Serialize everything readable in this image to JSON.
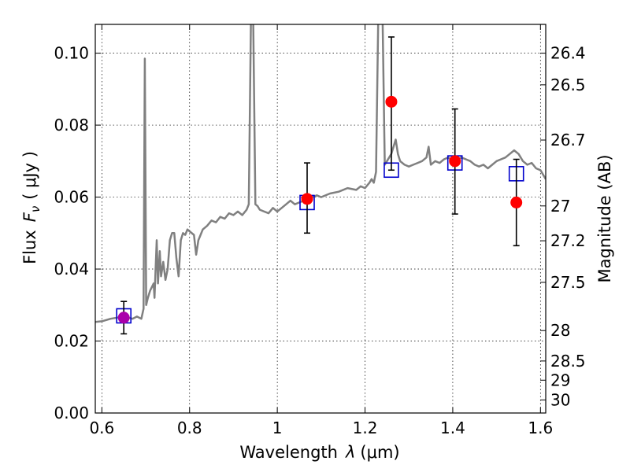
{
  "chart_data": {
    "type": "scatter",
    "xlabel": "Wavelength",
    "xlabel_symbol": "λ",
    "xlabel_unit": "(μm)",
    "ylabel": "Flux",
    "ylabel_symbol": "F",
    "ylabel_symbol_sub": "ν",
    "ylabel_unit": "( μJy )",
    "y2label": "Magnitude (AB)",
    "xlim": [
      0.585,
      1.612
    ],
    "ylim": [
      0.0,
      0.108
    ],
    "grid": true,
    "grid_style": "dotted",
    "x_ticks": [
      {
        "value": 0.6,
        "label": "0.6"
      },
      {
        "value": 0.8,
        "label": "0.8"
      },
      {
        "value": 1.0,
        "label": "1"
      },
      {
        "value": 1.2,
        "label": "1.2"
      },
      {
        "value": 1.4,
        "label": "1.4"
      },
      {
        "value": 1.6,
        "label": "1.6"
      }
    ],
    "y_ticks": [
      {
        "value": 0.0,
        "label": "0.00"
      },
      {
        "value": 0.02,
        "label": "0.02"
      },
      {
        "value": 0.04,
        "label": "0.04"
      },
      {
        "value": 0.06,
        "label": "0.06"
      },
      {
        "value": 0.08,
        "label": "0.08"
      },
      {
        "value": 0.1,
        "label": "0.10"
      }
    ],
    "mag_ticks": [
      {
        "mag": 26.4,
        "label": "26.4"
      },
      {
        "mag": 26.5,
        "label": "26.5"
      },
      {
        "mag": 26.7,
        "label": "26.7"
      },
      {
        "mag": 27.0,
        "label": "27"
      },
      {
        "mag": 27.2,
        "label": "27.2"
      },
      {
        "mag": 27.5,
        "label": "27.5"
      },
      {
        "mag": 28.0,
        "label": "28"
      },
      {
        "mag": 28.5,
        "label": "28.5"
      },
      {
        "mag": 29.0,
        "label": "29"
      },
      {
        "mag": 30.0,
        "label": "30"
      }
    ],
    "mag_zeropoint": 23.9,
    "colors": {
      "spectrum": "#808080",
      "observed": "#ff0000",
      "model": "#0000cc",
      "overlap": "#aa00aa",
      "errorbar": "#000000"
    },
    "series": [
      {
        "kind": "line",
        "points": [
          [
            0.585,
            0.0253
          ],
          [
            0.6,
            0.0255
          ],
          [
            0.62,
            0.0262
          ],
          [
            0.64,
            0.0266
          ],
          [
            0.66,
            0.0265
          ],
          [
            0.67,
            0.0262
          ],
          [
            0.68,
            0.0268
          ],
          [
            0.69,
            0.0262
          ],
          [
            0.695,
            0.029
          ],
          [
            0.698,
            0.0985
          ],
          [
            0.701,
            0.03
          ],
          [
            0.705,
            0.032
          ],
          [
            0.71,
            0.034
          ],
          [
            0.718,
            0.036
          ],
          [
            0.72,
            0.032
          ],
          [
            0.725,
            0.048
          ],
          [
            0.728,
            0.036
          ],
          [
            0.732,
            0.045
          ],
          [
            0.735,
            0.038
          ],
          [
            0.74,
            0.042
          ],
          [
            0.745,
            0.037
          ],
          [
            0.75,
            0.04
          ],
          [
            0.755,
            0.048
          ],
          [
            0.76,
            0.05
          ],
          [
            0.765,
            0.05
          ],
          [
            0.77,
            0.043
          ],
          [
            0.775,
            0.038
          ],
          [
            0.78,
            0.048
          ],
          [
            0.785,
            0.05
          ],
          [
            0.79,
            0.0495
          ],
          [
            0.795,
            0.051
          ],
          [
            0.8,
            0.0505
          ],
          [
            0.81,
            0.0495
          ],
          [
            0.815,
            0.044
          ],
          [
            0.82,
            0.048
          ],
          [
            0.83,
            0.051
          ],
          [
            0.84,
            0.052
          ],
          [
            0.85,
            0.0535
          ],
          [
            0.86,
            0.053
          ],
          [
            0.87,
            0.0545
          ],
          [
            0.88,
            0.054
          ],
          [
            0.89,
            0.0555
          ],
          [
            0.9,
            0.055
          ],
          [
            0.91,
            0.056
          ],
          [
            0.92,
            0.055
          ],
          [
            0.93,
            0.0565
          ],
          [
            0.935,
            0.058
          ],
          [
            0.94,
            0.11
          ],
          [
            0.945,
            0.11
          ],
          [
            0.95,
            0.058
          ],
          [
            0.955,
            0.0575
          ],
          [
            0.96,
            0.0565
          ],
          [
            0.97,
            0.056
          ],
          [
            0.98,
            0.0555
          ],
          [
            0.99,
            0.057
          ],
          [
            1.0,
            0.056
          ],
          [
            1.01,
            0.057
          ],
          [
            1.02,
            0.058
          ],
          [
            1.03,
            0.059
          ],
          [
            1.04,
            0.058
          ],
          [
            1.05,
            0.0585
          ],
          [
            1.06,
            0.059
          ],
          [
            1.07,
            0.0595
          ],
          [
            1.08,
            0.06
          ],
          [
            1.09,
            0.0605
          ],
          [
            1.1,
            0.06
          ],
          [
            1.12,
            0.061
          ],
          [
            1.14,
            0.0615
          ],
          [
            1.16,
            0.0625
          ],
          [
            1.18,
            0.062
          ],
          [
            1.19,
            0.063
          ],
          [
            1.2,
            0.0625
          ],
          [
            1.21,
            0.064
          ],
          [
            1.215,
            0.065
          ],
          [
            1.22,
            0.064
          ],
          [
            1.225,
            0.067
          ],
          [
            1.23,
            0.108
          ],
          [
            1.235,
            0.11
          ],
          [
            1.24,
            0.11
          ],
          [
            1.245,
            0.069
          ],
          [
            1.25,
            0.07
          ],
          [
            1.26,
            0.072
          ],
          [
            1.27,
            0.076
          ],
          [
            1.275,
            0.072
          ],
          [
            1.28,
            0.07
          ],
          [
            1.29,
            0.069
          ],
          [
            1.3,
            0.0685
          ],
          [
            1.31,
            0.069
          ],
          [
            1.32,
            0.0695
          ],
          [
            1.33,
            0.07
          ],
          [
            1.34,
            0.071
          ],
          [
            1.345,
            0.074
          ],
          [
            1.35,
            0.069
          ],
          [
            1.36,
            0.07
          ],
          [
            1.37,
            0.0695
          ],
          [
            1.38,
            0.0705
          ],
          [
            1.39,
            0.071
          ],
          [
            1.4,
            0.07
          ],
          [
            1.41,
            0.0705
          ],
          [
            1.42,
            0.071
          ],
          [
            1.43,
            0.0705
          ],
          [
            1.44,
            0.07
          ],
          [
            1.45,
            0.069
          ],
          [
            1.46,
            0.0685
          ],
          [
            1.47,
            0.069
          ],
          [
            1.48,
            0.068
          ],
          [
            1.49,
            0.069
          ],
          [
            1.5,
            0.07
          ],
          [
            1.51,
            0.0705
          ],
          [
            1.52,
            0.071
          ],
          [
            1.53,
            0.072
          ],
          [
            1.54,
            0.073
          ],
          [
            1.55,
            0.072
          ],
          [
            1.56,
            0.07
          ],
          [
            1.57,
            0.069
          ],
          [
            1.58,
            0.0695
          ],
          [
            1.59,
            0.068
          ],
          [
            1.6,
            0.0675
          ],
          [
            1.612,
            0.065
          ]
        ]
      },
      {
        "kind": "model_squares",
        "points": [
          {
            "x": 0.65,
            "y": 0.027
          },
          {
            "x": 1.068,
            "y": 0.0585
          },
          {
            "x": 1.26,
            "y": 0.0675
          },
          {
            "x": 1.405,
            "y": 0.0695
          },
          {
            "x": 1.545,
            "y": 0.0665
          }
        ]
      },
      {
        "kind": "observed_points",
        "points": [
          {
            "x": 0.65,
            "y": 0.0265,
            "err_low": 0.022,
            "err_high": 0.031,
            "color": "#aa00aa"
          },
          {
            "x": 1.068,
            "y": 0.0595,
            "err_low": 0.05,
            "err_high": 0.0695,
            "color": "#ff0000"
          },
          {
            "x": 1.26,
            "y": 0.0865,
            "err_low": 0.0675,
            "err_high": 0.1045,
            "color": "#ff0000"
          },
          {
            "x": 1.405,
            "y": 0.07,
            "err_low": 0.0553,
            "err_high": 0.0845,
            "color": "#ff0000"
          },
          {
            "x": 1.545,
            "y": 0.0585,
            "err_low": 0.0465,
            "err_high": 0.0705,
            "color": "#ff0000"
          }
        ]
      }
    ]
  }
}
